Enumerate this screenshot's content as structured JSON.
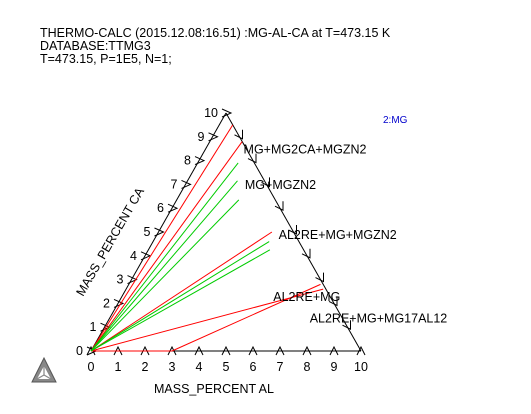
{
  "header": {
    "line1": "THERMO-CALC (2015.12.08:16.51) :MG-AL-CA at T=473.15 K",
    "line2": "DATABASE:TTMG3",
    "line3": "T=473.15, P=1E5, N=1;"
  },
  "colors": {
    "axis": "#000000",
    "red_lines": "#ff0000",
    "green_lines": "#00cc00",
    "legend": "#0000cc"
  },
  "logo_icon": "thermo-calc-triangle-logo",
  "chart_data": {
    "type": "ternary",
    "xlabel": "MASS_PERCENT AL",
    "ylabel": "MASS_PERCENT CA",
    "xlim": [
      0,
      10
    ],
    "ylim": [
      0,
      10
    ],
    "x_ticks": [
      "0",
      "1",
      "2",
      "3",
      "4",
      "5",
      "6",
      "7",
      "8",
      "9",
      "10"
    ],
    "y_ticks": [
      "0",
      "1",
      "2",
      "3",
      "4",
      "5",
      "6",
      "7",
      "8",
      "9",
      "10"
    ],
    "legend": "2:MG",
    "phase_regions": [
      {
        "label": "MG+MG2CA+MGZN2",
        "at": [
          1.5,
          8.3
        ]
      },
      {
        "label": "MG+MGZN2",
        "at": [
          2.3,
          6.8
        ]
      },
      {
        "label": "AL2RE+MG+MGZN2",
        "at": [
          4.6,
          4.7
        ]
      },
      {
        "label": "AL2RE+MG",
        "at": [
          5.7,
          2.1
        ]
      },
      {
        "label": "AL2RE+MG+MG17AL12",
        "at": [
          7.5,
          1.2
        ]
      }
    ],
    "red_lines": [
      {
        "from": [
          0,
          0
        ],
        "to": [
          0.5,
          9.5
        ]
      },
      {
        "from": [
          0,
          0
        ],
        "to": [
          1.2,
          8.8
        ]
      },
      {
        "from": [
          0,
          0
        ],
        "to": [
          4.2,
          5.0
        ]
      },
      {
        "from": [
          0,
          0
        ],
        "to": [
          7.3,
          2.6
        ]
      },
      {
        "from": [
          0,
          0
        ],
        "to": [
          3.0,
          0
        ]
      },
      {
        "from": [
          3.0,
          0
        ],
        "to": [
          7.1,
          2.8
        ]
      }
    ],
    "green_lines": [
      {
        "from": [
          0,
          0
        ],
        "to": [
          1.5,
          7.9
        ]
      },
      {
        "from": [
          0,
          0
        ],
        "to": [
          1.85,
          7.15
        ]
      },
      {
        "from": [
          0,
          0
        ],
        "to": [
          2.3,
          6.35
        ]
      },
      {
        "from": [
          0,
          0
        ],
        "to": [
          4.3,
          4.6
        ]
      },
      {
        "from": [
          0,
          0
        ],
        "to": [
          4.5,
          4.25
        ]
      }
    ]
  }
}
